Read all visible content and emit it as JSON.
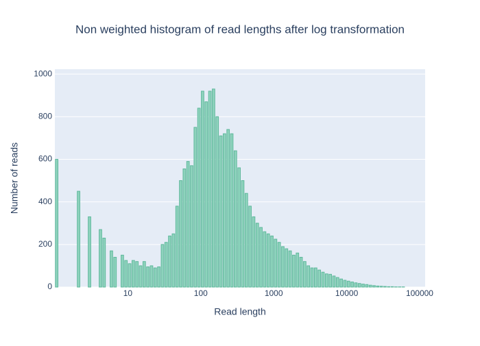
{
  "chart_data": {
    "type": "histogram",
    "title": "Non weighted histogram of read lengths after log transformation",
    "xlabel": "Read length",
    "ylabel": "Number of reads",
    "color": "#8fd3bd",
    "edge_color": "#5fb89c",
    "xscale": "log",
    "grid": "y",
    "xlim": [
      1,
      119000
    ],
    "ylim": [
      0,
      1023
    ],
    "xticks": [
      10,
      100,
      1000,
      10000,
      100000
    ],
    "yticks": [
      0,
      200,
      400,
      600,
      800,
      1000
    ],
    "bins": [
      1,
      1.122,
      1.259,
      1.413,
      1.585,
      1.778,
      1.995,
      2.239,
      2.512,
      2.818,
      3.162,
      3.548,
      3.981,
      4.467,
      5.012,
      5.623,
      6.31,
      7.079,
      7.943,
      8.913,
      10,
      11.22,
      12.59,
      14.13,
      15.85,
      17.78,
      19.95,
      22.39,
      25.12,
      28.18,
      31.62,
      35.48,
      39.81,
      44.67,
      50.12,
      56.23,
      63.1,
      70.79,
      79.43,
      89.13,
      100,
      112.2,
      125.9,
      141.3,
      158.5,
      177.8,
      199.5,
      223.9,
      251.2,
      281.8,
      316.2,
      354.8,
      398.1,
      446.7,
      501.2,
      562.3,
      631,
      707.9,
      794.3,
      891.3,
      1000,
      1122,
      1259,
      1413,
      1585,
      1778,
      1995,
      2239,
      2512,
      2818,
      3162,
      3548,
      3981,
      4467,
      5012,
      5623,
      6310,
      7079,
      7943,
      8913,
      10000,
      11220,
      12590,
      14130,
      15850,
      17780,
      19950,
      22390,
      25120,
      28180,
      31620,
      35480,
      39810,
      44670,
      50120,
      56230,
      63100,
      70790,
      79430,
      89130,
      100000
    ],
    "counts": [
      600,
      0,
      0,
      0,
      0,
      0,
      450,
      0,
      0,
      330,
      0,
      0,
      270,
      230,
      0,
      170,
      140,
      0,
      150,
      125,
      110,
      125,
      120,
      100,
      120,
      95,
      100,
      90,
      95,
      200,
      210,
      240,
      250,
      380,
      500,
      555,
      590,
      570,
      750,
      840,
      920,
      870,
      920,
      930,
      800,
      710,
      720,
      740,
      720,
      640,
      560,
      500,
      440,
      380,
      330,
      300,
      280,
      260,
      250,
      240,
      225,
      210,
      190,
      180,
      170,
      150,
      160,
      140,
      120,
      100,
      90,
      90,
      80,
      70,
      62,
      60,
      52,
      45,
      38,
      32,
      28,
      24,
      20,
      17,
      14,
      12,
      9,
      7,
      5,
      4,
      3,
      2,
      2,
      1,
      1,
      1,
      0,
      0,
      0,
      0
    ]
  }
}
